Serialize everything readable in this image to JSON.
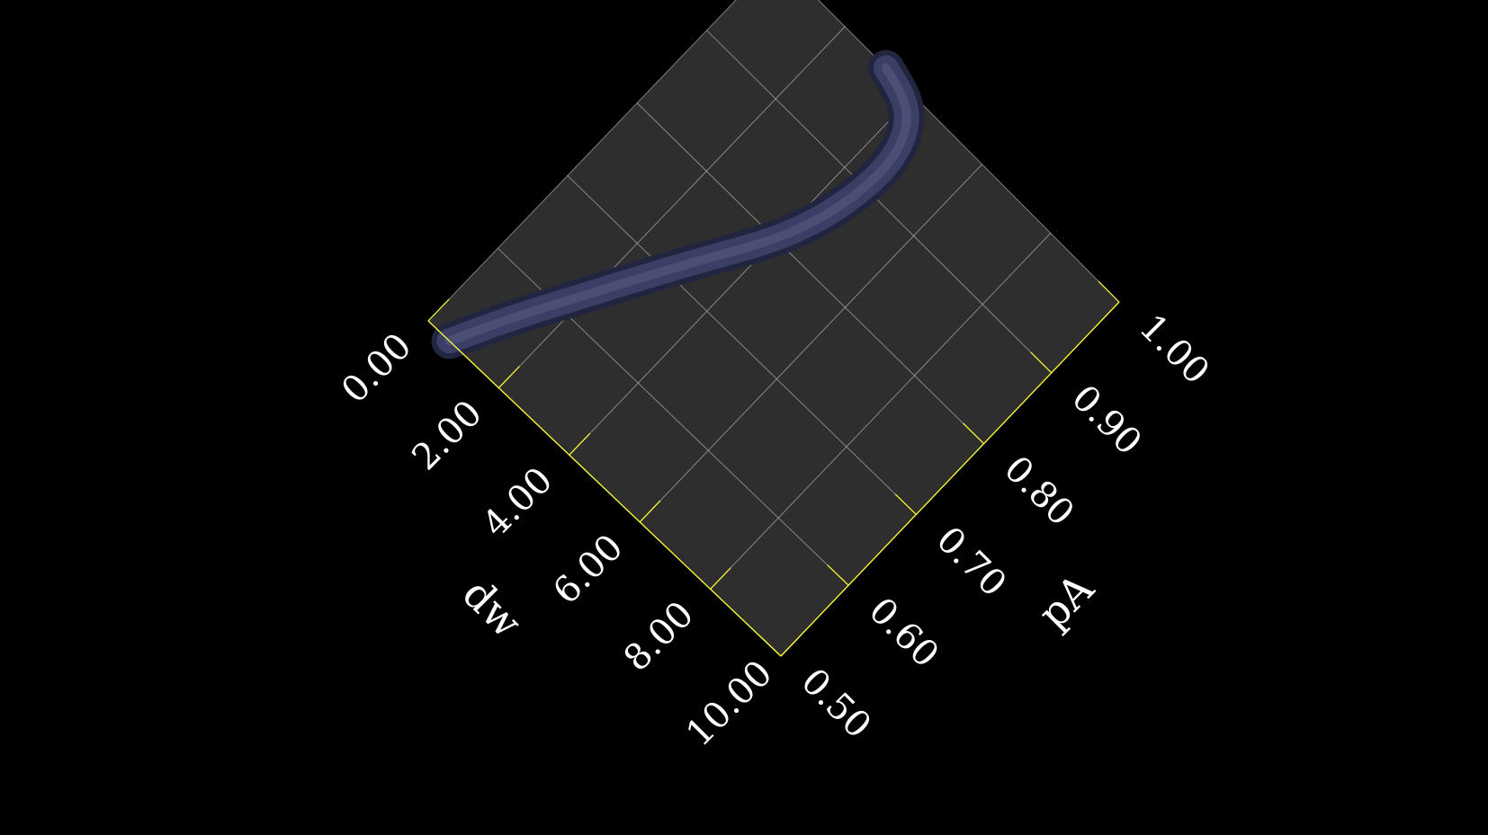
{
  "chart_data": {
    "type": "area",
    "render": "3d-surface-plot",
    "background": "#000000",
    "plane_color": "#2e2e2e",
    "grid_color": "#cfcfcf",
    "axis_color": "#ffff33",
    "surface_color": "#3b3f66",
    "x_axis": {
      "label": "dw",
      "range": [
        0,
        10
      ],
      "ticks": [
        "0.00",
        "2.00",
        "4.00",
        "6.00",
        "8.00",
        "10.00"
      ]
    },
    "y_axis": {
      "label": "pA",
      "range": [
        0.5,
        1.0
      ],
      "ticks": [
        "0.50",
        "0.60",
        "0.70",
        "0.80",
        "0.90",
        "1.00"
      ]
    },
    "series": [
      {
        "points": [
          {
            "x": 0.6,
            "y": 0.5
          },
          {
            "x": 1.2,
            "y": 0.56
          },
          {
            "x": 2.0,
            "y": 0.63
          },
          {
            "x": 2.8,
            "y": 0.7
          },
          {
            "x": 3.4,
            "y": 0.75
          },
          {
            "x": 4.0,
            "y": 0.8
          },
          {
            "x": 4.4,
            "y": 0.85
          },
          {
            "x": 4.6,
            "y": 0.9
          },
          {
            "x": 4.6,
            "y": 0.94
          },
          {
            "x": 4.4,
            "y": 0.97
          },
          {
            "x": 4.0,
            "y": 0.99
          },
          {
            "x": 3.2,
            "y": 1.0
          }
        ]
      }
    ]
  }
}
